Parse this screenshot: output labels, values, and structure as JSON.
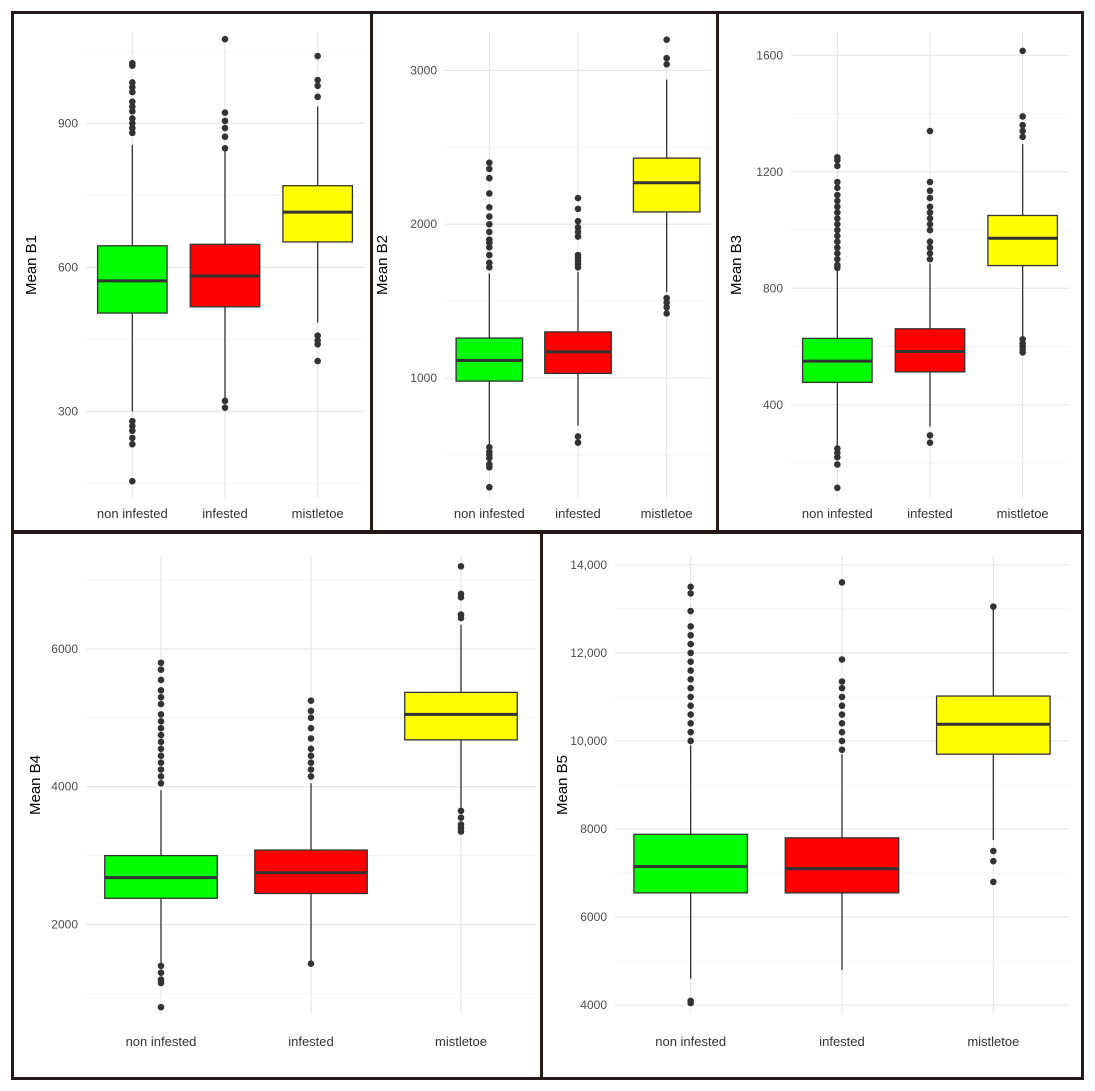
{
  "chart_data": [
    {
      "type": "boxplot",
      "ylabel": "Mean B1",
      "ylim": [
        120,
        1090
      ],
      "yticks": [
        300,
        600,
        900
      ],
      "ytick_labels": [
        "300",
        "600",
        "900"
      ],
      "categories": [
        "non infested",
        "infested",
        "mistletoe"
      ],
      "boxes": [
        {
          "q1": 505,
          "median": 572,
          "q3": 645,
          "whisker_low": 300,
          "whisker_high": 855,
          "outliers": [
            1025,
            1020,
            985,
            975,
            965,
            945,
            935,
            925,
            910,
            900,
            890,
            880,
            280,
            270,
            260,
            245,
            232,
            155
          ],
          "fill": "#00ff00"
        },
        {
          "q1": 518,
          "median": 582,
          "q3": 648,
          "whisker_low": 325,
          "whisker_high": 845,
          "outliers": [
            1075,
            922,
            905,
            890,
            872,
            848,
            322,
            308
          ],
          "fill": "#ff0000"
        },
        {
          "q1": 653,
          "median": 715,
          "q3": 770,
          "whisker_low": 485,
          "whisker_high": 935,
          "outliers": [
            1040,
            990,
            978,
            955,
            458,
            448,
            440,
            405
          ],
          "fill": "#ffff00"
        }
      ]
    },
    {
      "type": "boxplot",
      "ylabel": "Mean B2",
      "ylim": [
        220,
        3250
      ],
      "yticks": [
        1000,
        2000,
        3000
      ],
      "ytick_labels": [
        "1000",
        "2000",
        "3000"
      ],
      "categories": [
        "non infested",
        "infested",
        "mistletoe"
      ],
      "boxes": [
        {
          "q1": 980,
          "median": 1115,
          "q3": 1260,
          "whisker_low": 560,
          "whisker_high": 1680,
          "outliers": [
            2400,
            2360,
            2300,
            2200,
            2110,
            2050,
            2000,
            1950,
            1900,
            1880,
            1850,
            1800,
            1750,
            1720,
            550,
            520,
            500,
            480,
            440,
            420,
            290
          ],
          "fill": "#00ff00"
        },
        {
          "q1": 1030,
          "median": 1170,
          "q3": 1300,
          "whisker_low": 690,
          "whisker_high": 1690,
          "outliers": [
            2170,
            2100,
            2020,
            1980,
            1950,
            1920,
            1800,
            1780,
            1760,
            1740,
            1720,
            620,
            580
          ],
          "fill": "#ff0000"
        },
        {
          "q1": 2080,
          "median": 2270,
          "q3": 2430,
          "whisker_low": 1560,
          "whisker_high": 2940,
          "outliers": [
            3200,
            3080,
            3040,
            1520,
            1490,
            1460,
            1420
          ],
          "fill": "#ffff00"
        }
      ]
    },
    {
      "type": "boxplot",
      "ylabel": "Mean B3",
      "ylim": [
        80,
        1680
      ],
      "yticks": [
        400,
        800,
        1200,
        1600
      ],
      "ytick_labels": [
        "400",
        "800",
        "1200",
        "1600"
      ],
      "categories": [
        "non infested",
        "infested",
        "mistletoe"
      ],
      "boxes": [
        {
          "q1": 477,
          "median": 550,
          "q3": 628,
          "whisker_low": 260,
          "whisker_high": 860,
          "outliers": [
            1250,
            1240,
            1220,
            1165,
            1145,
            1120,
            1100,
            1080,
            1060,
            1040,
            1020,
            1000,
            980,
            960,
            940,
            920,
            900,
            880,
            870,
            250,
            235,
            220,
            195,
            115
          ],
          "fill": "#00ff00"
        },
        {
          "q1": 513,
          "median": 583,
          "q3": 661,
          "whisker_low": 325,
          "whisker_high": 885,
          "outliers": [
            1340,
            1165,
            1135,
            1110,
            1080,
            1060,
            1040,
            1020,
            1000,
            960,
            940,
            920,
            900,
            295,
            270
          ],
          "fill": "#ff0000"
        },
        {
          "q1": 878,
          "median": 972,
          "q3": 1050,
          "whisker_low": 630,
          "whisker_high": 1295,
          "outliers": [
            1615,
            1390,
            1360,
            1340,
            1320,
            625,
            610,
            600,
            590,
            580
          ],
          "fill": "#ffff00"
        }
      ]
    },
    {
      "type": "boxplot",
      "ylabel": "Mean B4",
      "ylim": [
        700,
        7350
      ],
      "yticks": [
        2000,
        4000,
        6000
      ],
      "ytick_labels": [
        "2000",
        "4000",
        "6000"
      ],
      "categories": [
        "non infested",
        "infested",
        "mistletoe"
      ],
      "boxes": [
        {
          "q1": 2380,
          "median": 2680,
          "q3": 3000,
          "whisker_low": 1450,
          "whisker_high": 3950,
          "outliers": [
            5800,
            5700,
            5550,
            5400,
            5300,
            5200,
            5050,
            4950,
            4850,
            4750,
            4650,
            4550,
            4450,
            4350,
            4250,
            4150,
            4050,
            1400,
            1300,
            1200,
            1150,
            800
          ],
          "fill": "#00ff00"
        },
        {
          "q1": 2450,
          "median": 2750,
          "q3": 3080,
          "whisker_low": 1450,
          "whisker_high": 4050,
          "outliers": [
            5250,
            5100,
            5000,
            4850,
            4700,
            4550,
            4450,
            4350,
            4250,
            4150,
            1430
          ],
          "fill": "#ff0000"
        },
        {
          "q1": 4680,
          "median": 5050,
          "q3": 5370,
          "whisker_low": 3700,
          "whisker_high": 6350,
          "outliers": [
            7200,
            6800,
            6750,
            6500,
            6450,
            3650,
            3550,
            3450,
            3400,
            3350
          ],
          "fill": "#ffff00"
        }
      ]
    },
    {
      "type": "boxplot",
      "ylabel": "Mean B5",
      "ylim": [
        3800,
        14200
      ],
      "yticks": [
        4000,
        6000,
        8000,
        10000,
        12000,
        14000
      ],
      "ytick_labels": [
        "4000",
        "6000",
        "8000",
        "10,000",
        "12,000",
        "14,000"
      ],
      "categories": [
        "non infested",
        "infested",
        "mistletoe"
      ],
      "boxes": [
        {
          "q1": 6550,
          "median": 7150,
          "q3": 7880,
          "whisker_low": 4600,
          "whisker_high": 9900,
          "outliers": [
            13500,
            13350,
            12950,
            12600,
            12400,
            12200,
            12000,
            11800,
            11600,
            11400,
            11200,
            11000,
            10800,
            10600,
            10400,
            10200,
            10000,
            4100,
            4050
          ],
          "fill": "#00ff00"
        },
        {
          "q1": 6550,
          "median": 7100,
          "q3": 7800,
          "whisker_low": 4800,
          "whisker_high": 9700,
          "outliers": [
            13600,
            11850,
            11350,
            11200,
            11000,
            10800,
            10600,
            10400,
            10200,
            10000,
            9800
          ],
          "fill": "#ff0000"
        },
        {
          "q1": 9700,
          "median": 10380,
          "q3": 11020,
          "whisker_low": 7750,
          "whisker_high": 13050,
          "outliers": [
            13050,
            7500,
            7270,
            6800
          ],
          "fill": "#ffff00"
        }
      ]
    }
  ]
}
